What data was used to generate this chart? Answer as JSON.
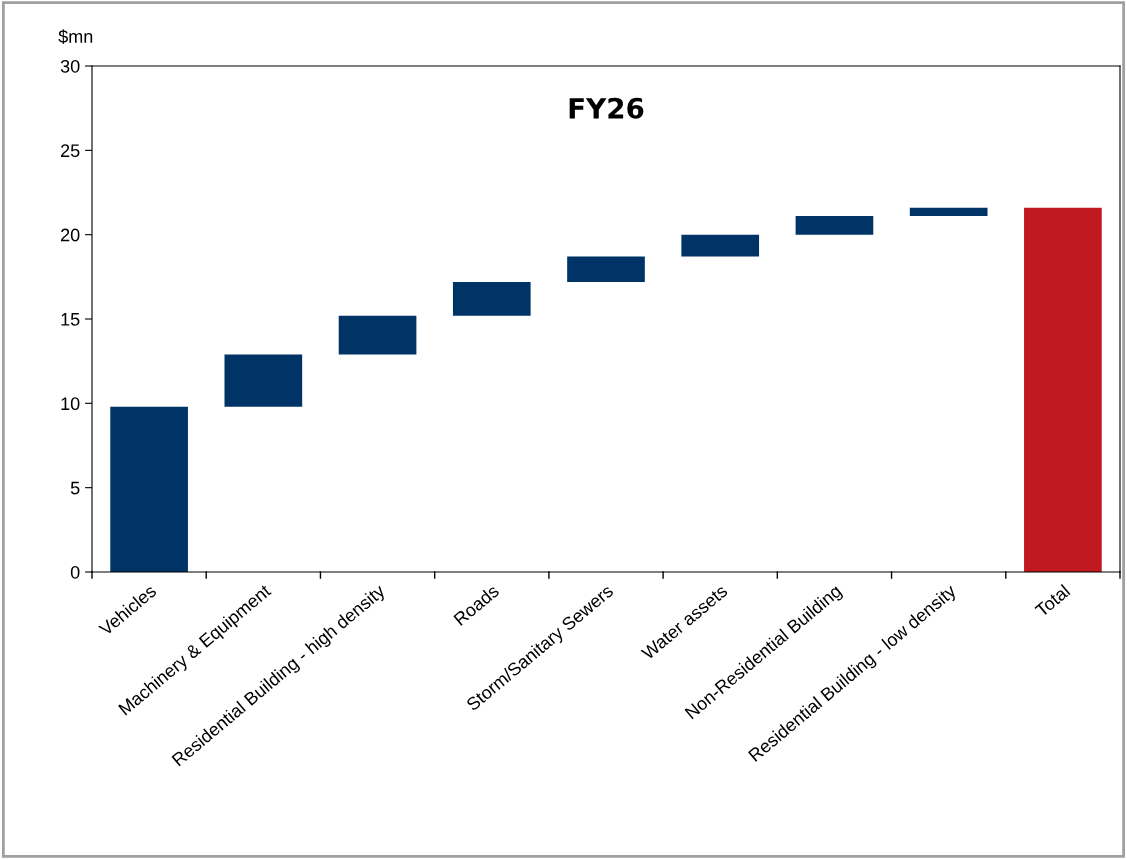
{
  "chart_data": {
    "type": "bar",
    "title": "FY26",
    "ylabel": "$mn",
    "categories": [
      "Vehicles",
      "Machinery & Equipment",
      "Residential Building - high density",
      "Roads",
      "Storm/Sanitary Sewers",
      "Water assets",
      "Non-Residential Building",
      "Residential Building - low density",
      "Total"
    ],
    "values": [
      9.8,
      3.1,
      2.3,
      2.0,
      1.5,
      1.3,
      1.1,
      0.5,
      21.6
    ],
    "base": [
      0,
      9.8,
      12.9,
      15.2,
      17.2,
      18.7,
      20.0,
      21.1,
      0
    ],
    "colors": [
      "#003366",
      "#003366",
      "#003366",
      "#003366",
      "#003366",
      "#003366",
      "#003366",
      "#003366",
      "#c0191f"
    ],
    "ylim": [
      0,
      30
    ],
    "yticks": [
      0,
      5,
      10,
      15,
      20,
      25,
      30
    ],
    "grid": false,
    "legend": false
  }
}
